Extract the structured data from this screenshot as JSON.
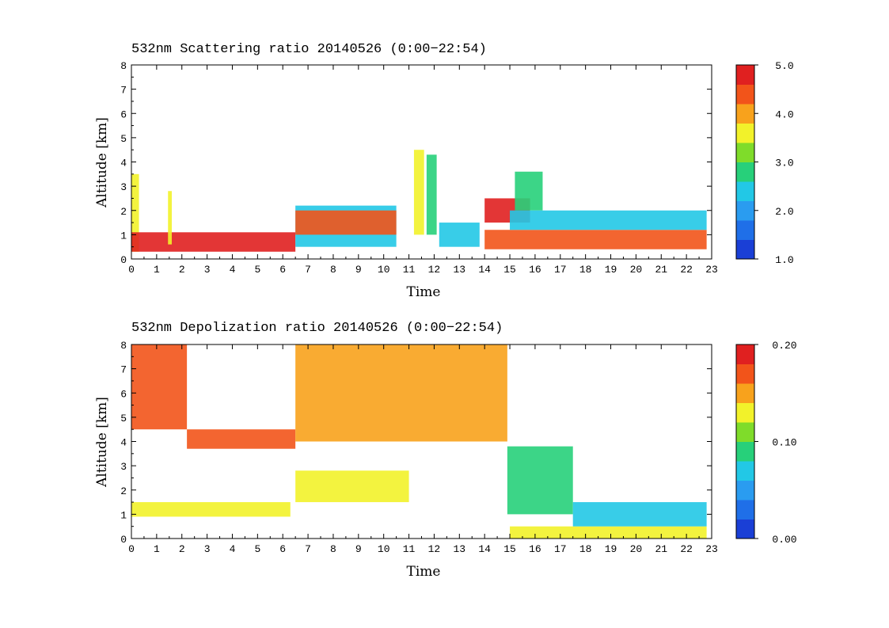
{
  "chart_data": [
    {
      "type": "heatmap",
      "title": "532nm Scattering ratio  20140526 (0:00−22:54)",
      "xlabel": "Time",
      "ylabel": "Altitude [km]",
      "xlim": [
        0,
        23
      ],
      "ylim": [
        0,
        8
      ],
      "xticks": [
        "0",
        "1",
        "2",
        "3",
        "4",
        "5",
        "6",
        "7",
        "8",
        "9",
        "10",
        "11",
        "12",
        "13",
        "14",
        "15",
        "16",
        "17",
        "18",
        "19",
        "20",
        "21",
        "22",
        "23"
      ],
      "yticks": [
        "0",
        "1",
        "2",
        "3",
        "4",
        "5",
        "6",
        "7",
        "8"
      ],
      "colorbar": {
        "min": 1.0,
        "max": 5.0,
        "ticks": [
          "1.0",
          "2.0",
          "3.0",
          "4.0",
          "5.0"
        ]
      },
      "colorscale": [
        "#1a3fd6",
        "#1f6fe8",
        "#2a9cf0",
        "#22c8e6",
        "#27d07a",
        "#7fdc2a",
        "#f2f22a",
        "#f8a21c",
        "#f2541a",
        "#e02020"
      ],
      "regions": [
        {
          "x0": 0.0,
          "x1": 0.3,
          "y0": 0.3,
          "y1": 3.5,
          "value": 3.5
        },
        {
          "x0": 0.0,
          "x1": 6.5,
          "y0": 0.3,
          "y1": 1.1,
          "value": 4.6
        },
        {
          "x0": 1.45,
          "x1": 1.6,
          "y0": 0.6,
          "y1": 2.8,
          "value": 3.5
        },
        {
          "x0": 6.5,
          "x1": 10.5,
          "y0": 0.5,
          "y1": 2.2,
          "value": 2.2
        },
        {
          "x0": 6.5,
          "x1": 10.5,
          "y0": 1.0,
          "y1": 2.0,
          "value": 4.2
        },
        {
          "x0": 11.2,
          "x1": 11.6,
          "y0": 1.0,
          "y1": 4.5,
          "value": 3.5
        },
        {
          "x0": 11.7,
          "x1": 12.1,
          "y0": 1.0,
          "y1": 4.3,
          "value": 2.7
        },
        {
          "x0": 12.2,
          "x1": 13.8,
          "y0": 0.5,
          "y1": 1.5,
          "value": 2.3
        },
        {
          "x0": 14.0,
          "x1": 15.8,
          "y0": 1.5,
          "y1": 2.5,
          "value": 4.6
        },
        {
          "x0": 15.2,
          "x1": 16.3,
          "y0": 2.0,
          "y1": 3.6,
          "value": 2.6
        },
        {
          "x0": 14.0,
          "x1": 22.8,
          "y0": 0.4,
          "y1": 1.2,
          "value": 4.3
        },
        {
          "x0": 15.0,
          "x1": 22.8,
          "y0": 1.2,
          "y1": 2.0,
          "value": 2.4
        }
      ]
    },
    {
      "type": "heatmap",
      "title": "532nm Depolization ratio  20140526 (0:00−22:54)",
      "xlabel": "Time",
      "ylabel": "Altitude [km]",
      "xlim": [
        0,
        23
      ],
      "ylim": [
        0,
        8
      ],
      "xticks": [
        "0",
        "1",
        "2",
        "3",
        "4",
        "5",
        "6",
        "7",
        "8",
        "9",
        "10",
        "11",
        "12",
        "13",
        "14",
        "15",
        "16",
        "17",
        "18",
        "19",
        "20",
        "21",
        "22",
        "23"
      ],
      "yticks": [
        "0",
        "1",
        "2",
        "3",
        "4",
        "5",
        "6",
        "7",
        "8"
      ],
      "colorbar": {
        "min": 0.0,
        "max": 0.2,
        "ticks": [
          "0.00",
          "0.10",
          "0.20"
        ]
      },
      "colorscale": [
        "#1a3fd6",
        "#1f6fe8",
        "#2a9cf0",
        "#22c8e6",
        "#27d07a",
        "#7fdc2a",
        "#f2f22a",
        "#f8a21c",
        "#f2541a",
        "#e02020"
      ],
      "regions": [
        {
          "x0": 0.0,
          "x1": 2.2,
          "y0": 4.5,
          "y1": 8.0,
          "value": 0.17
        },
        {
          "x0": 2.2,
          "x1": 6.5,
          "y0": 3.7,
          "y1": 4.5,
          "value": 0.17
        },
        {
          "x0": 6.5,
          "x1": 14.9,
          "y0": 4.0,
          "y1": 8.0,
          "value": 0.14
        },
        {
          "x0": 0.0,
          "x1": 6.3,
          "y0": 0.9,
          "y1": 1.5,
          "value": 0.12
        },
        {
          "x0": 6.5,
          "x1": 11.0,
          "y0": 1.5,
          "y1": 2.8,
          "value": 0.12
        },
        {
          "x0": 14.9,
          "x1": 17.5,
          "y0": 1.0,
          "y1": 3.8,
          "value": 0.09
        },
        {
          "x0": 15.0,
          "x1": 22.8,
          "y0": 0.0,
          "y1": 0.5,
          "value": 0.12
        },
        {
          "x0": 17.5,
          "x1": 22.8,
          "y0": 0.5,
          "y1": 1.5,
          "value": 0.06
        }
      ]
    }
  ]
}
